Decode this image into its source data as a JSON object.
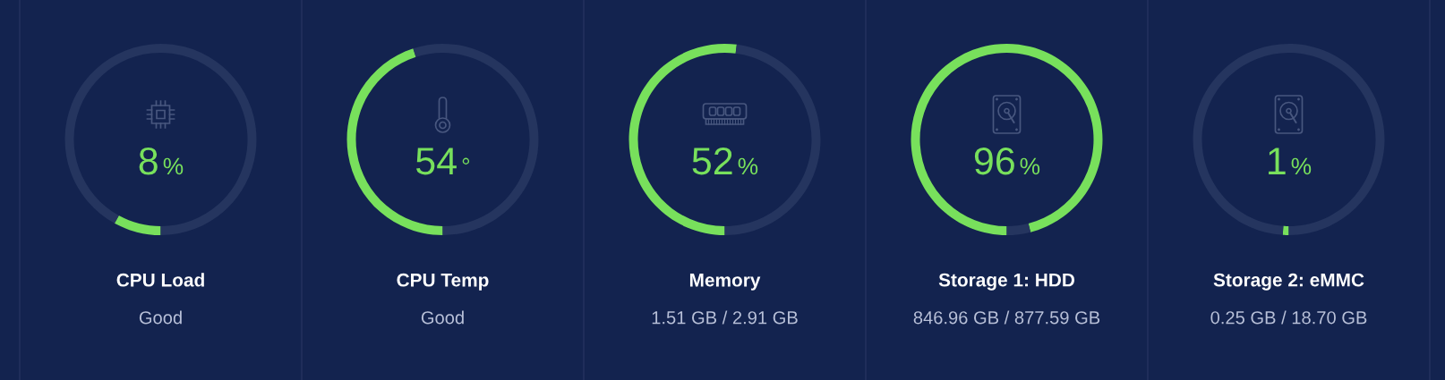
{
  "chart_data": [
    {
      "type": "donut",
      "title": "CPU Load",
      "subtitle": "Good",
      "categories": [
        null,
        null
      ],
      "values": [
        8,
        92
      ],
      "colors": [
        "#78e05c",
        "#25355f"
      ],
      "annotations": [
        "8%"
      ]
    },
    {
      "type": "donut",
      "title": "CPU Temp",
      "subtitle": "Good",
      "categories": [
        null,
        null
      ],
      "values": [
        45,
        55
      ],
      "colors": [
        "#78e05c",
        "#25355f"
      ],
      "annotations": [
        "54°"
      ]
    },
    {
      "type": "donut",
      "title": "Memory",
      "subtitle": "1.51 GB / 2.91 GB",
      "categories": [
        null,
        null
      ],
      "values": [
        52,
        48
      ],
      "colors": [
        "#78e05c",
        "#25355f"
      ],
      "annotations": [
        "52%"
      ]
    },
    {
      "type": "donut",
      "title": "Storage 1: HDD",
      "subtitle": "846.96 GB / 877.59 GB",
      "categories": [
        null,
        null
      ],
      "values": [
        96,
        4
      ],
      "colors": [
        "#78e05c",
        "#25355f"
      ],
      "annotations": [
        "96%"
      ]
    },
    {
      "type": "donut",
      "title": "Storage 2: eMMC",
      "subtitle": "0.25 GB / 18.70 GB",
      "categories": [
        null,
        null
      ],
      "values": [
        1,
        99
      ],
      "colors": [
        "#78e05c",
        "#25355f"
      ],
      "annotations": [
        "1%"
      ]
    }
  ]
}
